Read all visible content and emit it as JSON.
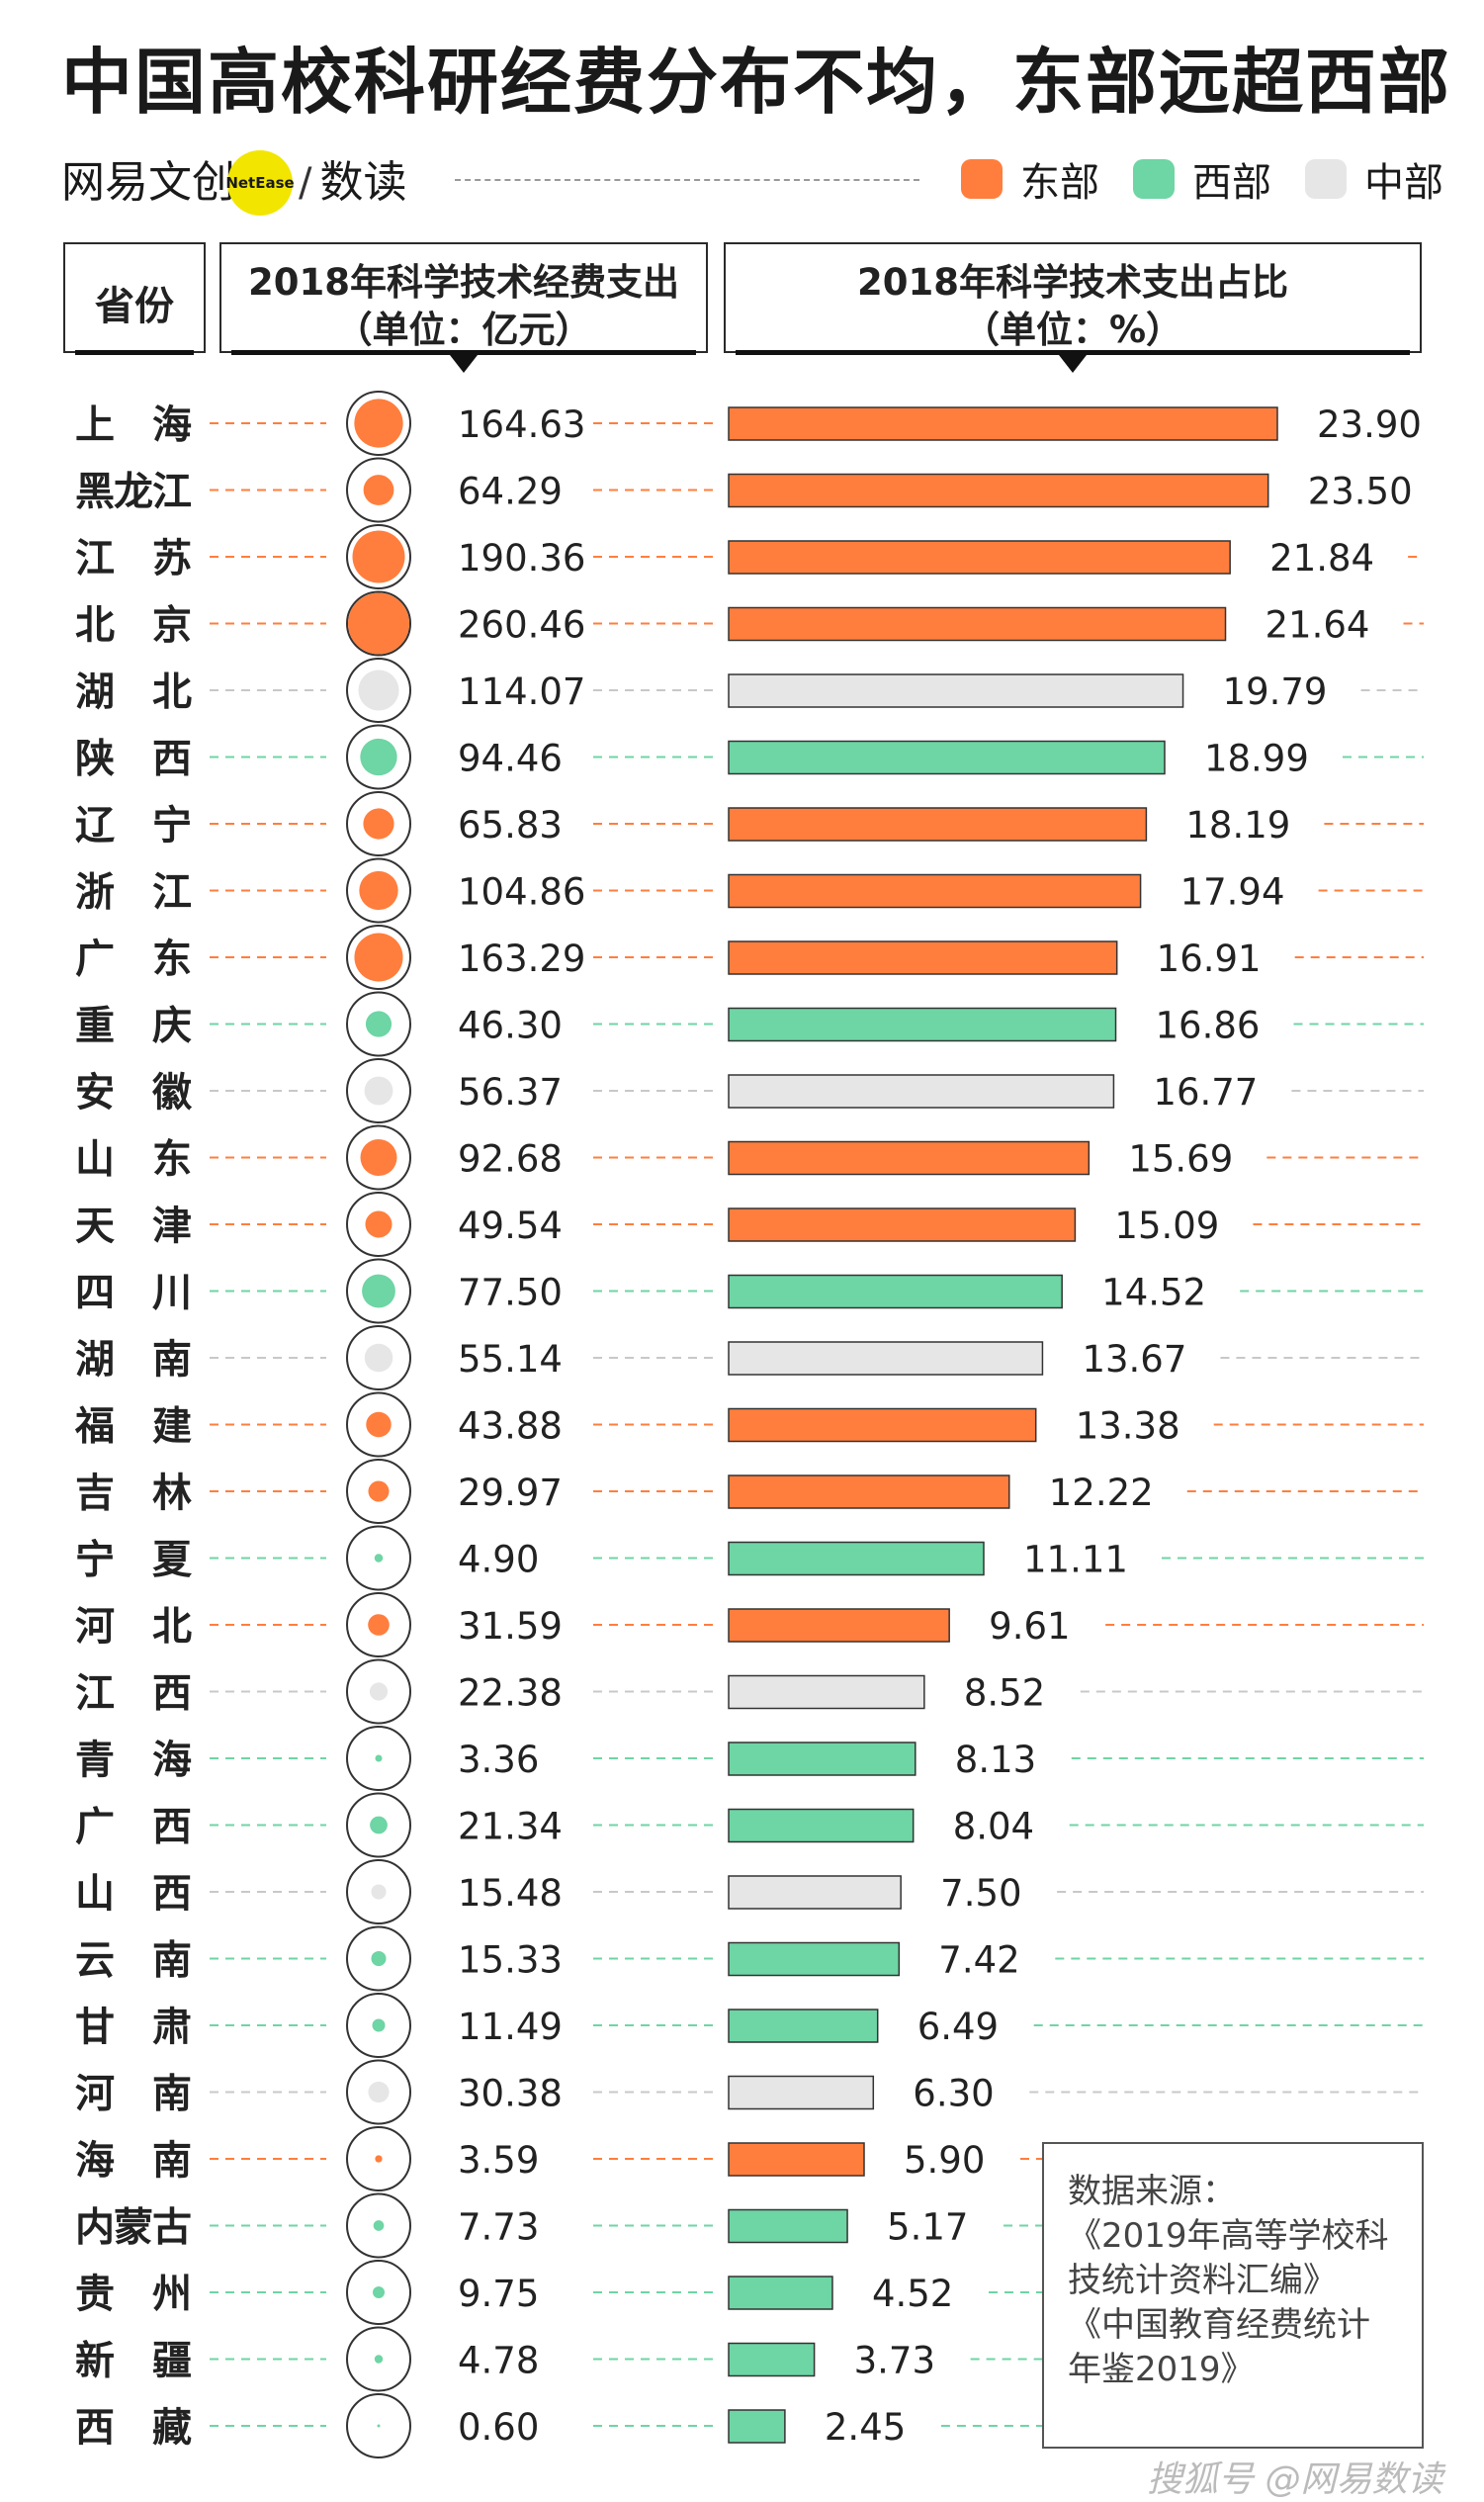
{
  "title": "中国高校科研经费分布不均，东部远超西部",
  "brand": {
    "name": "网易文创",
    "badge": "NetEase",
    "separator": "/",
    "sub": "数读"
  },
  "legend": [
    {
      "label": "东部",
      "color": "#ff7e3d"
    },
    {
      "label": "西部",
      "color": "#6ed5a4"
    },
    {
      "label": "中部",
      "color": "#e6e6e6"
    }
  ],
  "headers": {
    "province": "省份",
    "funding_line1": "2018年科学技术经费支出",
    "funding_line2": "（单位：亿元）",
    "share_line1": "2018年科学技术支出占比",
    "share_line2": "（单位：%）"
  },
  "source": {
    "lines": [
      "数据来源：",
      "《2019年高等学校科",
      "技统计资料汇编》",
      "《中国教育经费统计",
      "年鉴2019》"
    ]
  },
  "watermark": "搜狐号 @网易数读",
  "chart_data": {
    "type": "bar",
    "region_colors": {
      "东部": "#ff7e3d",
      "西部": "#6ed5a4",
      "中部": "#e6e6e6"
    },
    "categories": [
      "上 海",
      "黑龙江",
      "江 苏",
      "北 京",
      "湖 北",
      "陕 西",
      "辽 宁",
      "浙 江",
      "广 东",
      "重 庆",
      "安 徽",
      "山 东",
      "天 津",
      "四 川",
      "湖 南",
      "福 建",
      "吉 林",
      "宁 夏",
      "河 北",
      "江 西",
      "青 海",
      "广 西",
      "山 西",
      "云 南",
      "甘 肃",
      "河 南",
      "海 南",
      "内蒙古",
      "贵 州",
      "新 疆",
      "西 藏"
    ],
    "regions": [
      "东部",
      "东部",
      "东部",
      "东部",
      "中部",
      "西部",
      "东部",
      "东部",
      "东部",
      "西部",
      "中部",
      "东部",
      "东部",
      "西部",
      "中部",
      "东部",
      "东部",
      "西部",
      "东部",
      "中部",
      "西部",
      "西部",
      "中部",
      "西部",
      "西部",
      "中部",
      "东部",
      "西部",
      "西部",
      "西部",
      "西部"
    ],
    "funding": [
      164.63,
      64.29,
      190.36,
      260.46,
      114.07,
      94.46,
      65.83,
      104.86,
      163.29,
      46.3,
      56.37,
      92.68,
      49.54,
      77.5,
      55.14,
      43.88,
      29.97,
      4.9,
      31.59,
      22.38,
      3.36,
      21.34,
      15.48,
      15.33,
      11.49,
      30.38,
      3.59,
      7.73,
      9.75,
      4.78,
      0.6
    ],
    "funding_labels": [
      "164.63",
      "64.29",
      "190.36",
      "260.46",
      "114.07",
      "94.46",
      "65.83",
      "104.86",
      "163.29",
      "46.30",
      "56.37",
      "92.68",
      "49.54",
      "77.50",
      "55.14",
      "43.88",
      "29.97",
      "4.90",
      "31.59",
      "22.38",
      "3.36",
      "21.34",
      "15.48",
      "15.33",
      "11.49",
      "30.38",
      "3.59",
      "7.73",
      "9.75",
      "4.78",
      "0.60"
    ],
    "share": [
      23.9,
      23.5,
      21.84,
      21.64,
      19.79,
      18.99,
      18.19,
      17.94,
      16.91,
      16.86,
      16.77,
      15.69,
      15.09,
      14.52,
      13.67,
      13.38,
      12.22,
      11.11,
      9.61,
      8.52,
      8.13,
      8.04,
      7.5,
      7.42,
      6.49,
      6.3,
      5.9,
      5.17,
      4.52,
      3.73,
      2.45
    ],
    "share_labels": [
      "23.90",
      "23.50",
      "21.84",
      "21.64",
      "19.79",
      "18.99",
      "18.19",
      "17.94",
      "16.91",
      "16.86",
      "16.77",
      "15.69",
      "15.09",
      "14.52",
      "13.67",
      "13.38",
      "12.22",
      "11.11",
      "9.61",
      "8.52",
      "8.13",
      "8.04",
      "7.50",
      "7.42",
      "6.49",
      "6.30",
      "5.90",
      "5.17",
      "4.52",
      "3.73",
      "2.45"
    ]
  }
}
